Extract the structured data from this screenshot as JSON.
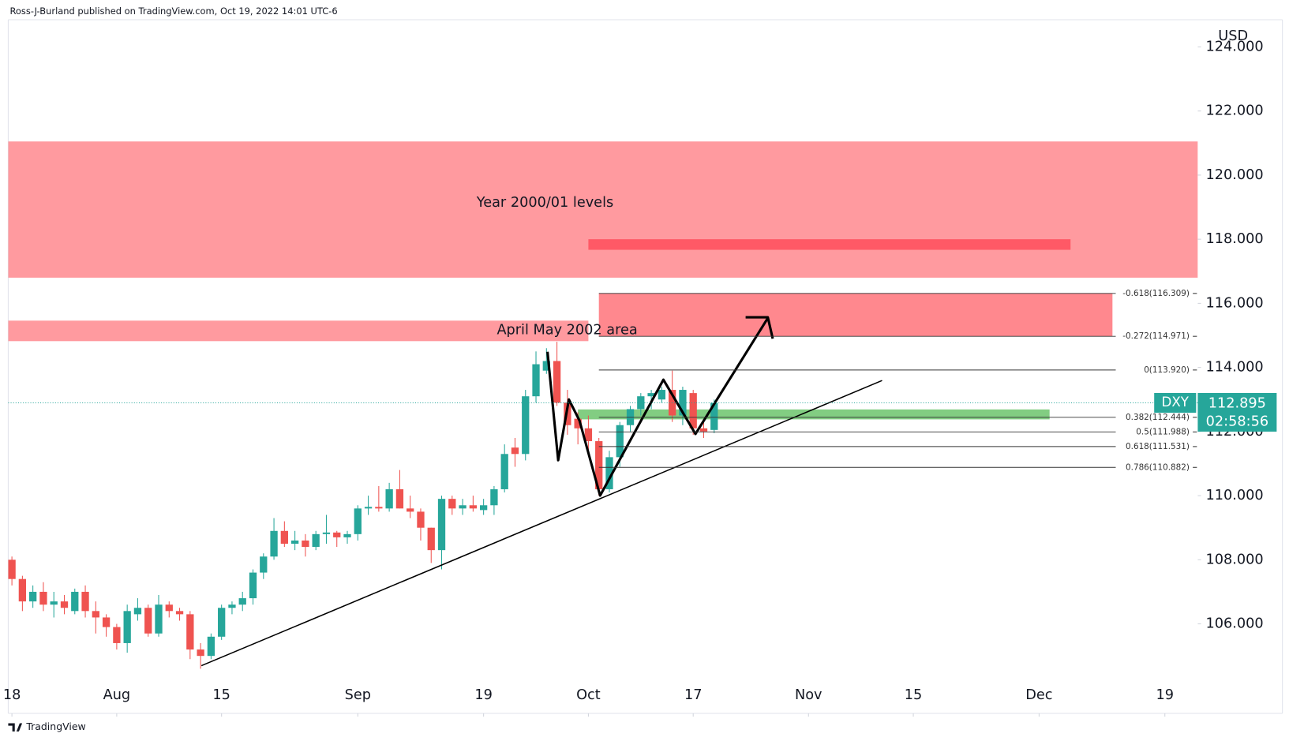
{
  "header": "Ross-J-Burland published on TradingView.com, Oct 19, 2022 14:01 UTC-6",
  "footer": "TradingView",
  "chart_data": {
    "type": "candlestick",
    "symbol": "DXY",
    "currency": "USD",
    "countdown": "02:58:56",
    "up_color": "#26a69a",
    "down_color": "#ef5350",
    "x": [
      "2022-07-18",
      "2022-07-19",
      "2022-07-20",
      "2022-07-21",
      "2022-07-22",
      "2022-07-25",
      "2022-07-26",
      "2022-07-27",
      "2022-07-28",
      "2022-07-29",
      "2022-08-01",
      "2022-08-02",
      "2022-08-03",
      "2022-08-04",
      "2022-08-05",
      "2022-08-08",
      "2022-08-09",
      "2022-08-10",
      "2022-08-11",
      "2022-08-12",
      "2022-08-15",
      "2022-08-16",
      "2022-08-17",
      "2022-08-18",
      "2022-08-19",
      "2022-08-22",
      "2022-08-23",
      "2022-08-24",
      "2022-08-25",
      "2022-08-26",
      "2022-08-29",
      "2022-08-30",
      "2022-08-31",
      "2022-09-01",
      "2022-09-02",
      "2022-09-05",
      "2022-09-06",
      "2022-09-07",
      "2022-09-08",
      "2022-09-09",
      "2022-09-12",
      "2022-09-13",
      "2022-09-14",
      "2022-09-15",
      "2022-09-16",
      "2022-09-19",
      "2022-09-20",
      "2022-09-21",
      "2022-09-22",
      "2022-09-23",
      "2022-09-26",
      "2022-09-27",
      "2022-09-28",
      "2022-09-29",
      "2022-09-30",
      "2022-10-03",
      "2022-10-04",
      "2022-10-05",
      "2022-10-06",
      "2022-10-07",
      "2022-10-10",
      "2022-10-11",
      "2022-10-12",
      "2022-10-13",
      "2022-10-14",
      "2022-10-17",
      "2022-10-18",
      "2022-10-19"
    ],
    "open": [
      108.0,
      107.4,
      106.7,
      107.0,
      106.6,
      106.7,
      106.4,
      107.0,
      106.4,
      106.2,
      105.9,
      105.4,
      106.3,
      106.5,
      105.7,
      106.6,
      106.4,
      106.3,
      105.2,
      105.0,
      105.6,
      106.5,
      106.6,
      106.8,
      107.6,
      108.1,
      108.9,
      108.5,
      108.6,
      108.4,
      108.8,
      108.85,
      108.7,
      108.8,
      109.6,
      109.65,
      109.6,
      110.2,
      109.6,
      109.5,
      109.0,
      108.3,
      109.9,
      109.6,
      109.7,
      109.55,
      109.7,
      110.2,
      111.5,
      111.3,
      113.1,
      113.9,
      114.2,
      112.9,
      112.4,
      112.1,
      111.7,
      110.2,
      111.2,
      112.2,
      112.7,
      113.1,
      113.0,
      113.3,
      112.5,
      113.2,
      112.1,
      112.05
    ],
    "high": [
      108.1,
      107.5,
      107.2,
      107.3,
      107.0,
      106.9,
      107.1,
      107.2,
      106.7,
      106.3,
      106.0,
      106.6,
      106.8,
      106.6,
      106.9,
      106.7,
      106.5,
      106.4,
      105.4,
      105.7,
      106.6,
      106.7,
      107.0,
      107.7,
      108.2,
      109.3,
      109.2,
      108.9,
      108.8,
      108.9,
      109.4,
      108.9,
      108.9,
      109.7,
      110.0,
      110.3,
      110.4,
      110.8,
      110.0,
      109.6,
      109.0,
      110.0,
      110.0,
      109.9,
      110.0,
      109.9,
      110.3,
      111.6,
      111.8,
      113.3,
      114.5,
      114.6,
      114.8,
      113.3,
      112.6,
      112.5,
      111.8,
      111.4,
      112.3,
      112.8,
      113.2,
      113.3,
      113.4,
      113.9,
      113.4,
      113.3,
      112.3,
      113.0
    ],
    "low": [
      107.2,
      106.4,
      106.5,
      106.4,
      106.2,
      106.3,
      106.3,
      106.2,
      105.7,
      105.6,
      105.2,
      105.1,
      106.1,
      105.6,
      105.6,
      106.2,
      106.1,
      104.9,
      104.6,
      104.9,
      105.5,
      106.3,
      106.4,
      106.6,
      107.4,
      108.0,
      108.4,
      108.3,
      108.1,
      108.3,
      108.5,
      108.4,
      108.5,
      108.6,
      109.4,
      109.5,
      109.5,
      109.6,
      109.3,
      108.6,
      107.9,
      107.7,
      109.4,
      109.4,
      109.5,
      109.4,
      109.4,
      110.1,
      110.9,
      111.1,
      112.9,
      113.8,
      112.8,
      111.9,
      111.6,
      111.4,
      110.0,
      110.1,
      110.9,
      112.0,
      112.5,
      112.7,
      112.9,
      112.3,
      112.2,
      111.9,
      111.8,
      111.95
    ],
    "close": [
      107.4,
      106.7,
      107.0,
      106.6,
      106.7,
      106.5,
      107.0,
      106.4,
      106.2,
      105.9,
      105.4,
      106.4,
      106.5,
      105.7,
      106.6,
      106.4,
      106.3,
      105.2,
      105.0,
      105.6,
      106.5,
      106.6,
      106.8,
      107.6,
      108.1,
      108.9,
      108.5,
      108.6,
      108.4,
      108.8,
      108.85,
      108.7,
      108.8,
      109.6,
      109.65,
      109.6,
      110.2,
      109.6,
      109.5,
      109.0,
      108.3,
      109.9,
      109.6,
      109.7,
      109.6,
      109.7,
      110.2,
      111.3,
      111.3,
      113.1,
      114.1,
      114.2,
      112.9,
      112.2,
      112.1,
      111.7,
      110.2,
      111.2,
      112.2,
      112.7,
      113.1,
      113.2,
      113.3,
      112.5,
      113.3,
      112.1,
      112.0,
      112.895
    ],
    "xlim": [
      "2022-07-18",
      "2022-12-22"
    ],
    "xticks": [
      {
        "value": "2022-07-18",
        "label": "18"
      },
      {
        "value": "2022-08-01",
        "label": "Aug"
      },
      {
        "value": "2022-08-15",
        "label": "15"
      },
      {
        "value": "2022-09-01",
        "label": "Sep"
      },
      {
        "value": "2022-09-19",
        "label": "19"
      },
      {
        "value": "2022-10-03",
        "label": "Oct"
      },
      {
        "value": "2022-10-17",
        "label": "17"
      },
      {
        "value": "2022-11-01",
        "label": "Nov"
      },
      {
        "value": "2022-11-15",
        "label": "15"
      },
      {
        "value": "2022-12-01",
        "label": "Dec"
      },
      {
        "value": "2022-12-19",
        "label": "19"
      }
    ],
    "ylim": [
      104.31,
      124.95
    ],
    "yticks": [
      {
        "value": 106,
        "label": "106.000"
      },
      {
        "value": 108,
        "label": "108.000"
      },
      {
        "value": 110,
        "label": "110.000"
      },
      {
        "value": 112,
        "label": "112.000"
      },
      {
        "value": 114,
        "label": "114.000"
      },
      {
        "value": 116,
        "label": "116.000"
      },
      {
        "value": 118,
        "label": "118.000"
      },
      {
        "value": 120,
        "label": "120.000"
      },
      {
        "value": 122,
        "label": "122.000"
      },
      {
        "value": 124,
        "label": "124.000"
      }
    ],
    "zones": [
      {
        "label": "Year 2000/01 levels",
        "y": [
          116.8,
          121.05
        ],
        "x": [
          null,
          null
        ],
        "color": "#ff888e"
      },
      {
        "y": [
          117.67,
          118.0
        ],
        "x": [
          "2022-10-03",
          "2022-12-06"
        ],
        "color": "#ff4d5c"
      },
      {
        "label": "April May 2002 area",
        "y": [
          114.82,
          115.46
        ],
        "x": [
          null,
          "2022-10-03"
        ],
        "color": "#ff888e"
      },
      {
        "y": [
          112.38,
          112.69
        ],
        "x": [
          "2022-09-30",
          "2022-12-02"
        ],
        "color": "#6cc46c"
      }
    ],
    "fib": {
      "x": [
        "2022-10-04",
        "2022-12-12"
      ],
      "fill_color": "#ff888e",
      "levels": [
        {
          "label": "-0.618(116.309)",
          "value": 116.309
        },
        {
          "label": "-0.272(114.971)",
          "value": 114.971
        },
        {
          "label": "0(113.920)",
          "value": 113.92
        },
        {
          "label": "0.382(112.444)",
          "value": 112.444
        },
        {
          "label": "0.5(111.988)",
          "value": 111.988
        },
        {
          "label": "0.618(111.531)",
          "value": 111.531
        },
        {
          "label": "0.786(110.882)",
          "value": 110.882
        }
      ]
    }
  }
}
